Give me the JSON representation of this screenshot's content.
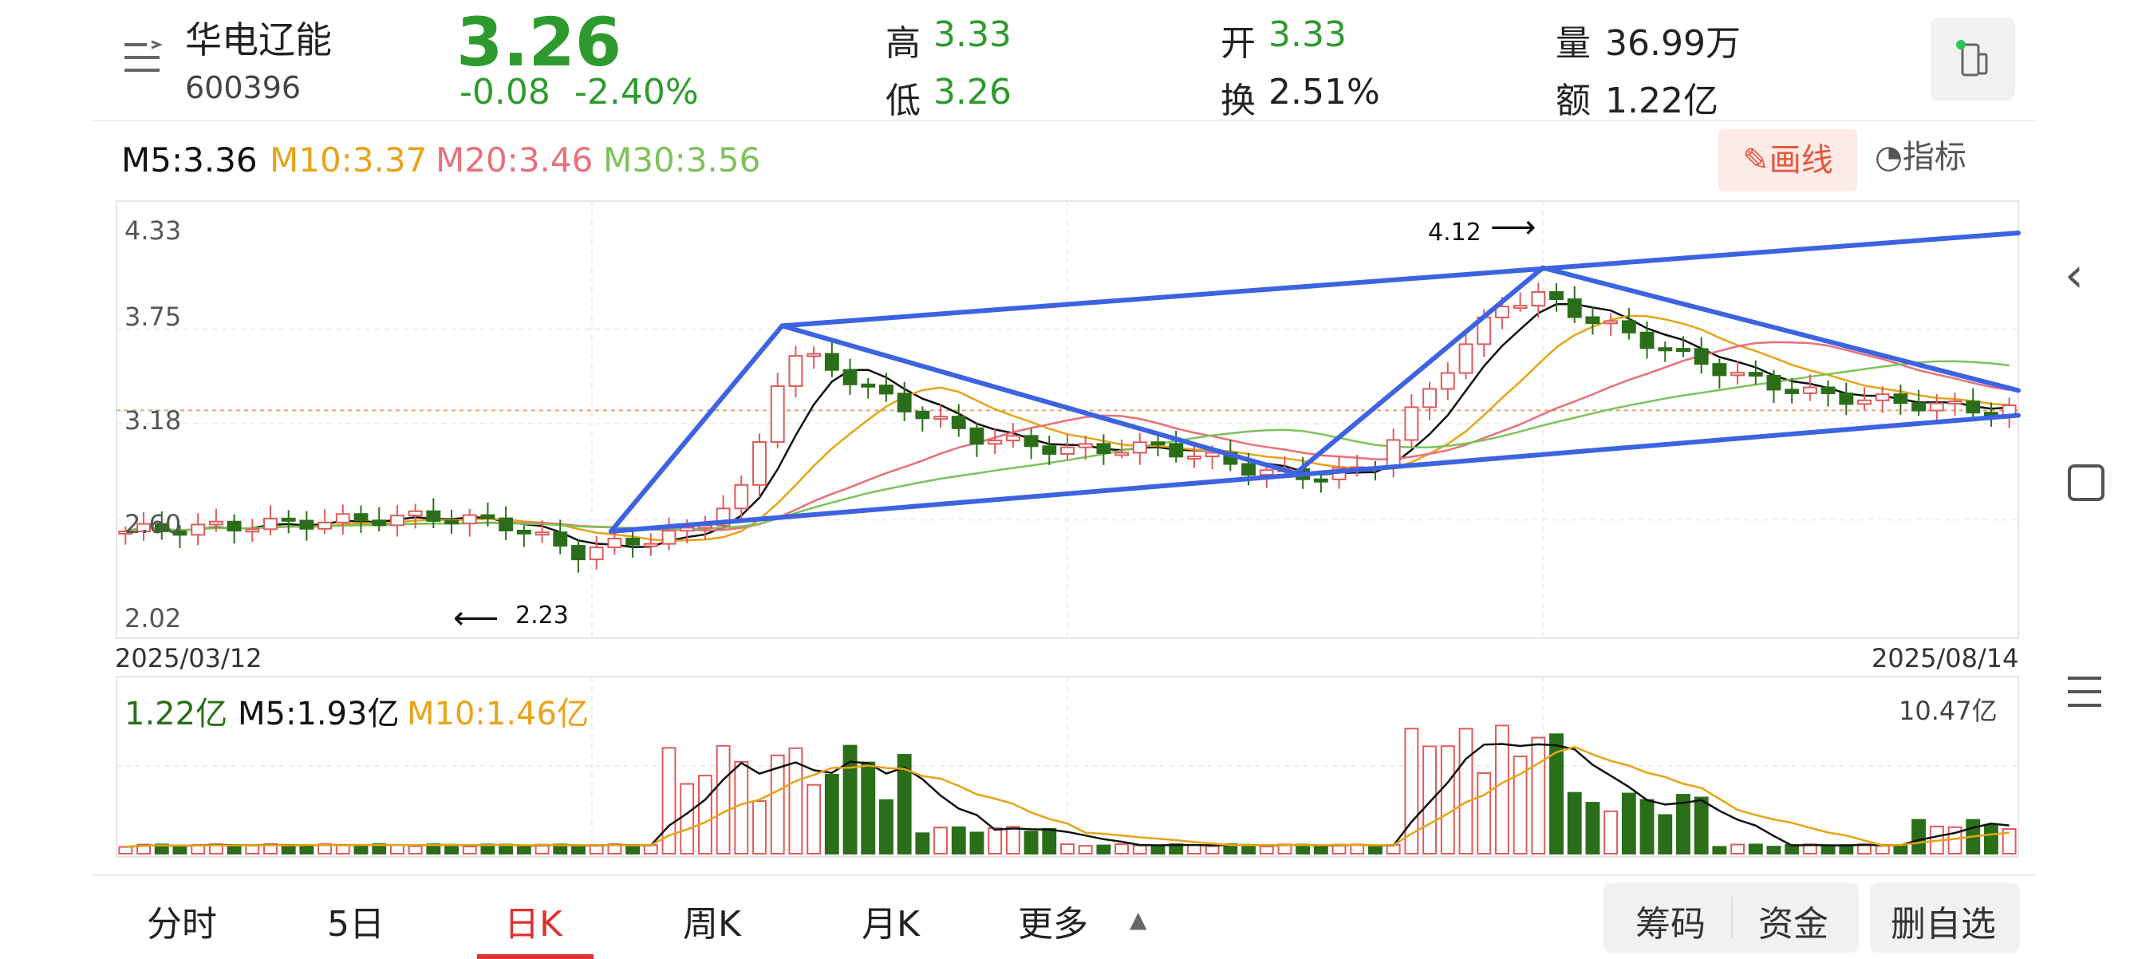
{
  "stock": {
    "name": "华电辽能",
    "code": "600396",
    "price": "3.26",
    "change": "-0.08",
    "change_pct": "-2.40%",
    "high_label": "高",
    "high": "3.33",
    "low_label": "低",
    "low": "3.26",
    "open_label": "开",
    "open": "3.33",
    "turnover_label": "换",
    "turnover": "2.51%",
    "volume_label": "量",
    "volume": "36.99万",
    "amount_label": "额",
    "amount": "1.22亿"
  },
  "ma": {
    "m5": "M5:3.36",
    "m10": "M10:3.37",
    "m20": "M20:3.46",
    "m30": "M30:3.56"
  },
  "buttons": {
    "draw": "画线",
    "indicator": "指标"
  },
  "price_axis": {
    "ticks": [
      "4.33",
      "3.75",
      "3.18",
      "2.60",
      "2.02"
    ]
  },
  "dates": {
    "start": "2025/03/12",
    "end": "2025/08/14"
  },
  "annotations": {
    "high_mark": "4.12",
    "low_mark": "2.23"
  },
  "volume": {
    "current": "1.22亿",
    "m5": "M5:1.93亿",
    "m10": "M10:1.46亿",
    "max": "10.47亿"
  },
  "tabs": [
    "分时",
    "5日",
    "日K",
    "周K",
    "月K",
    "更多"
  ],
  "right_buttons": [
    "筹码",
    "资金",
    "删自选"
  ],
  "colors": {
    "up": "#e05a5a",
    "down": "#2b6e1a",
    "m5": "#111111",
    "m10": "#e8a317",
    "m20": "#e8707a",
    "m30": "#7cc25a",
    "channel": "#3d63e0",
    "price_green": "#2e9a2e"
  },
  "chart_data": {
    "type": "candlestick",
    "x_start": "2025/03/12",
    "x_end": "2025/08/14",
    "ylim": [
      2.02,
      4.33
    ],
    "y_ticks": [
      4.33,
      3.75,
      3.18,
      2.6,
      2.02
    ],
    "current_price": 3.26,
    "annotations": [
      {
        "label": "4.12",
        "value": 4.12
      },
      {
        "label": "2.23",
        "value": 2.23
      }
    ],
    "trendlines": [
      {
        "from": [
          0.26,
          2.53
        ],
        "to": [
          1.0,
          3.23
        ]
      },
      {
        "from": [
          0.35,
          3.77
        ],
        "to": [
          1.0,
          4.33
        ]
      },
      {
        "from": [
          0.26,
          2.53
        ],
        "to": [
          0.35,
          3.77
        ]
      },
      {
        "from": [
          0.35,
          3.77
        ],
        "to": [
          0.62,
          2.88
        ]
      },
      {
        "from": [
          0.62,
          2.88
        ],
        "to": [
          0.75,
          4.12
        ]
      },
      {
        "from": [
          0.75,
          4.12
        ],
        "to": [
          1.0,
          3.38
        ]
      }
    ],
    "volume_max": "10.47亿"
  }
}
